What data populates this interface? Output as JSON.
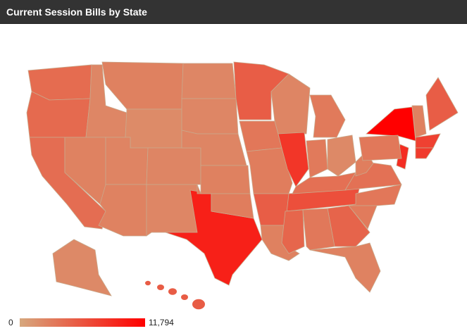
{
  "header": {
    "title": "Current Session Bills by State"
  },
  "chart_data": {
    "type": "choropleth",
    "values": [
      4200,
      4300,
      4100,
      2300,
      2600,
      2700,
      2000,
      2500,
      2600,
      2400,
      2300,
      2300,
      2300,
      2400,
      9500,
      5200,
      2700,
      3000,
      3400,
      3000,
      2400,
      8000,
      3200,
      2100,
      3200,
      6200,
      5200,
      2700,
      4600,
      4700,
      3300,
      3900,
      3800,
      3400,
      3100,
      11794,
      2600,
      2900,
      7200,
      7600,
      8600,
      3300,
      2700,
      5200
    ],
    "legend": {
      "min": 0,
      "max": {
        "value": 11794,
        "label": "11,794"
      },
      "low_color": "#d6a77d",
      "high_color": "#ff0000"
    }
  }
}
